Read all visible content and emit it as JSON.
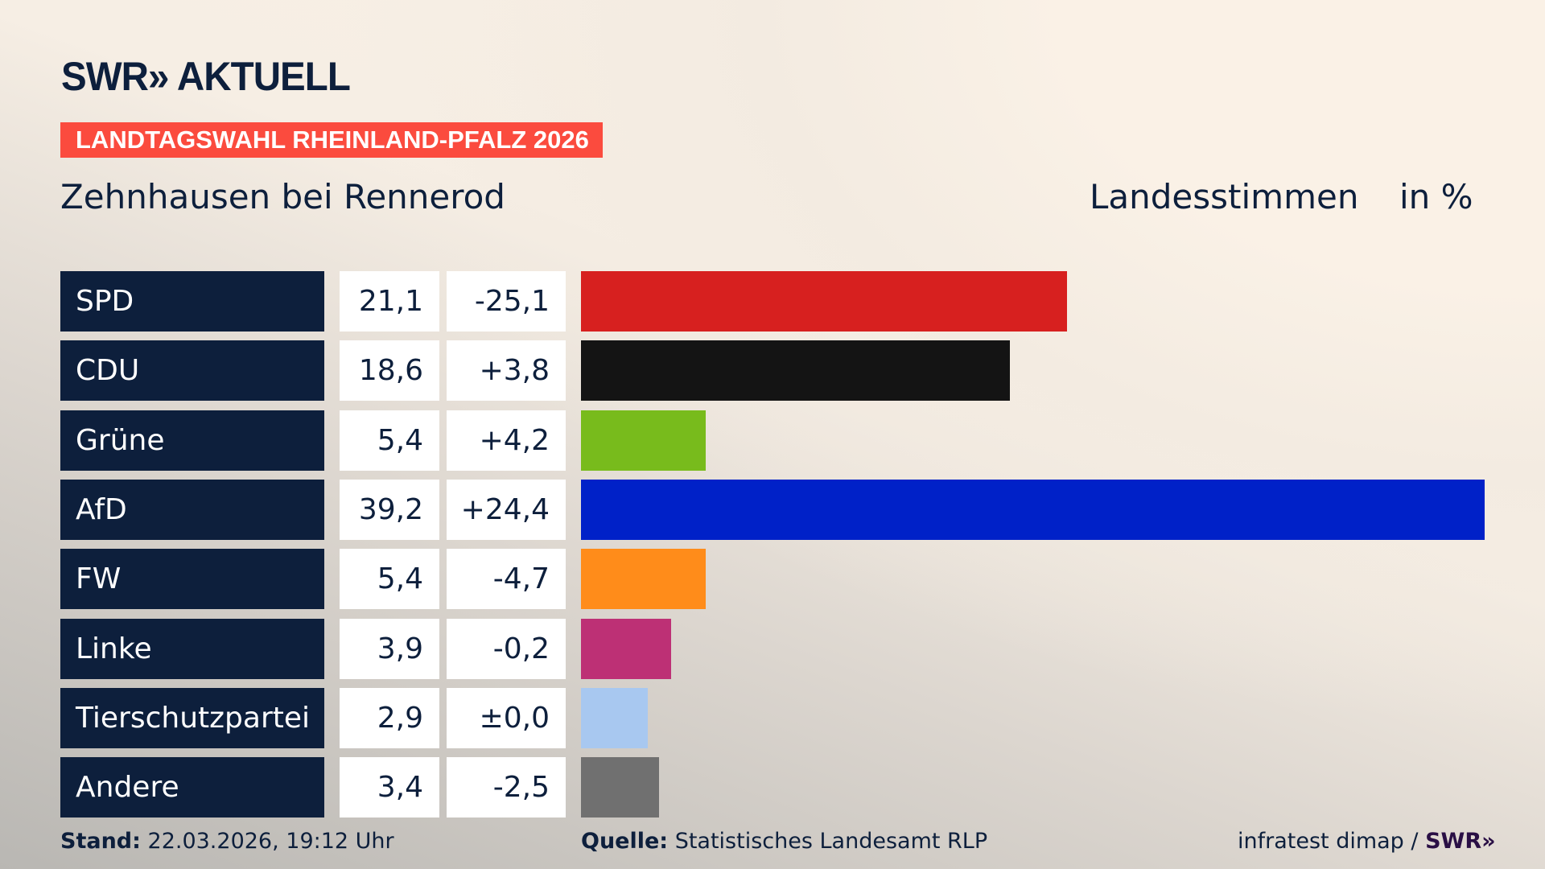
{
  "header": {
    "logo": "SWR» AKTUELL",
    "banner": "LANDTAGSWAHL RHEINLAND-PFALZ 2026",
    "place": "Zehnhausen bei Rennerod",
    "metric": "Landesstimmen",
    "unit": "in %"
  },
  "chart_data": {
    "type": "bar",
    "orientation": "horizontal",
    "xlim": [
      0,
      39.2
    ],
    "categories": [
      "SPD",
      "CDU",
      "Grüne",
      "AfD",
      "FW",
      "Linke",
      "Tierschutzpartei",
      "Andere"
    ],
    "values": [
      21.1,
      18.6,
      5.4,
      39.2,
      5.4,
      3.9,
      2.9,
      3.4
    ],
    "value_labels": [
      "21,1",
      "18,6",
      "5,4",
      "39,2",
      "5,4",
      "3,9",
      "2,9",
      "3,4"
    ],
    "diff_labels": [
      "-25,1",
      "+3,8",
      "+4,2",
      "+24,4",
      "-4,7",
      "-0,2",
      "±0,0",
      "-2,5"
    ],
    "colors": [
      "#d7201f",
      "#141414",
      "#78bb1c",
      "#0021c8",
      "#ff8c1a",
      "#bd3075",
      "#a8c8f0",
      "#707070"
    ]
  },
  "footer": {
    "stand_label": "Stand:",
    "stand": "22.03.2026, 19:12 Uhr",
    "source_label": "Quelle:",
    "source": "Statistisches Landesamt RLP",
    "credit": "infratest dimap /",
    "credit_logo": "SWR»"
  }
}
